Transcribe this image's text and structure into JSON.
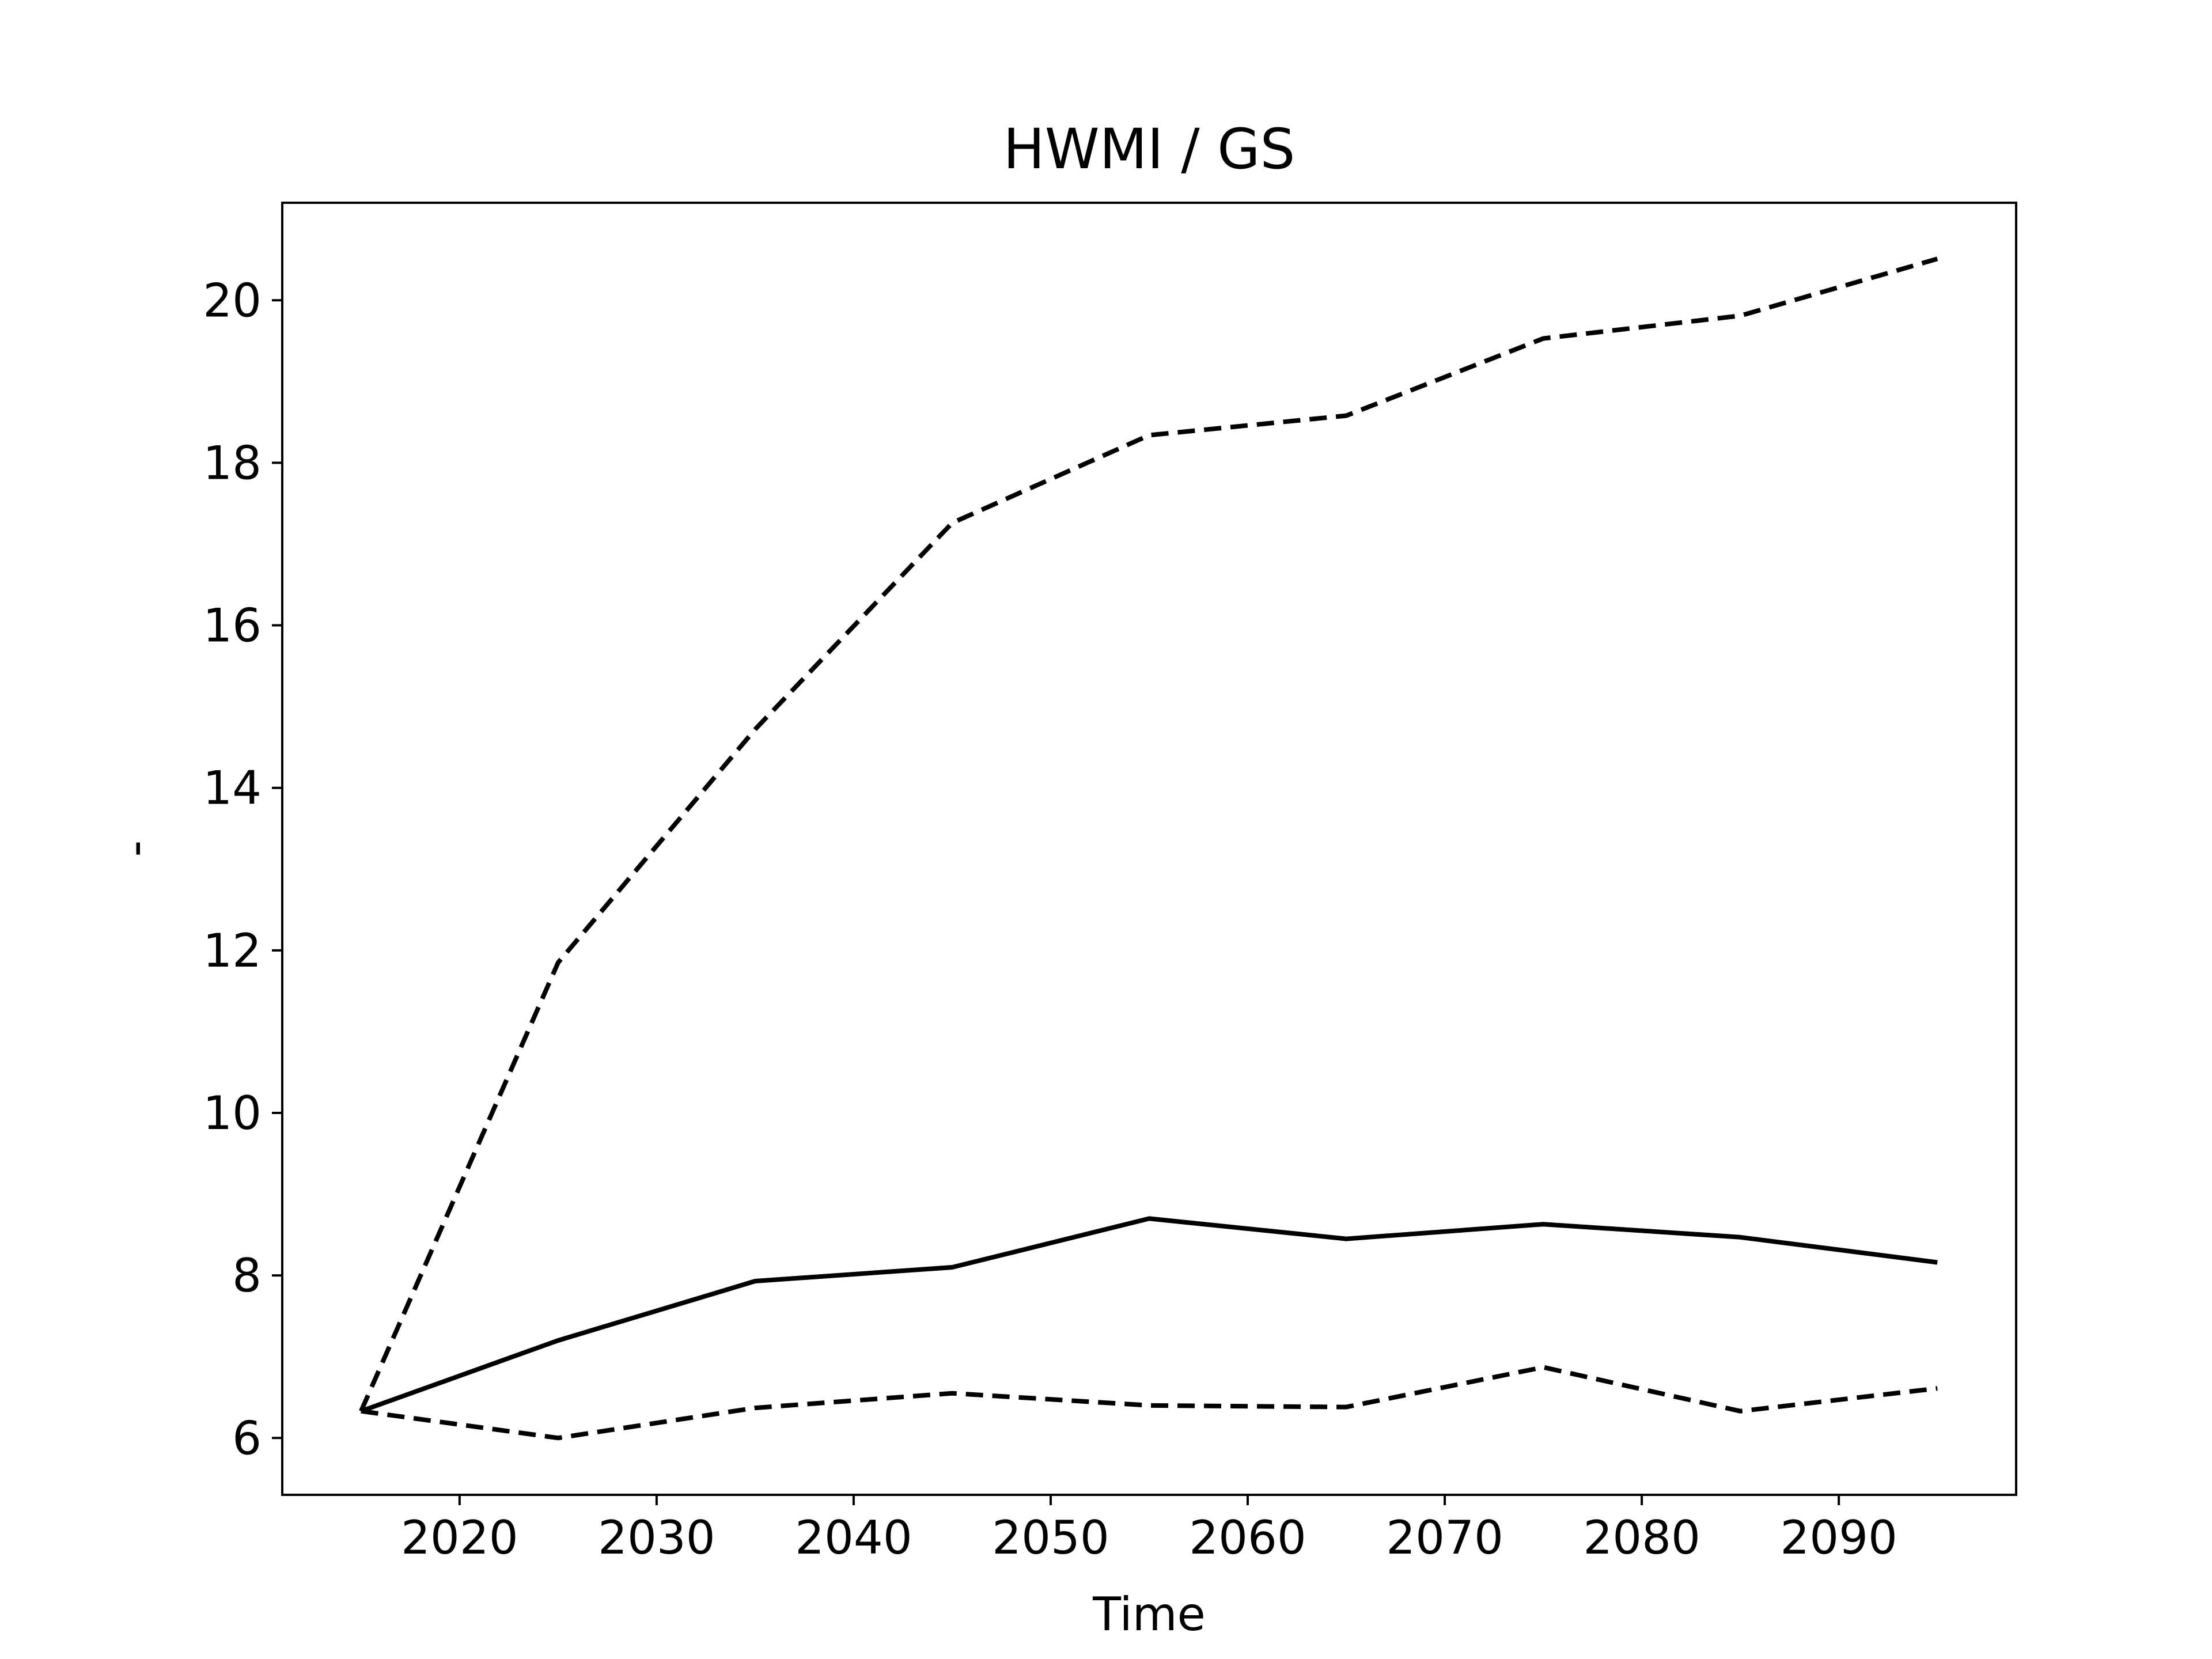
{
  "chart_data": {
    "type": "line",
    "title": "HWMI / GS",
    "xlabel": "Time",
    "ylabel": "-",
    "xlim": [
      2011,
      2099
    ],
    "ylim": [
      5.3,
      21.2
    ],
    "x_ticks": [
      2020,
      2030,
      2040,
      2050,
      2060,
      2070,
      2080,
      2090
    ],
    "y_ticks": [
      6,
      8,
      10,
      12,
      14,
      16,
      18,
      20
    ],
    "grid": false,
    "legend": "none",
    "x": [
      2015,
      2025,
      2035,
      2045,
      2055,
      2065,
      2075,
      2085,
      2095
    ],
    "series": [
      {
        "style": "solid",
        "color": "#000000",
        "values": [
          6.33,
          7.2,
          7.93,
          8.1,
          8.7,
          8.45,
          8.63,
          8.47,
          8.16
        ]
      },
      {
        "style": "dashed",
        "color": "#000000",
        "values": [
          6.33,
          11.85,
          14.72,
          17.26,
          18.34,
          18.58,
          19.53,
          19.81,
          20.51
        ]
      },
      {
        "style": "dashed",
        "color": "#000000",
        "values": [
          6.33,
          6.0,
          6.37,
          6.55,
          6.4,
          6.38,
          6.87,
          6.33,
          6.61
        ]
      }
    ]
  }
}
